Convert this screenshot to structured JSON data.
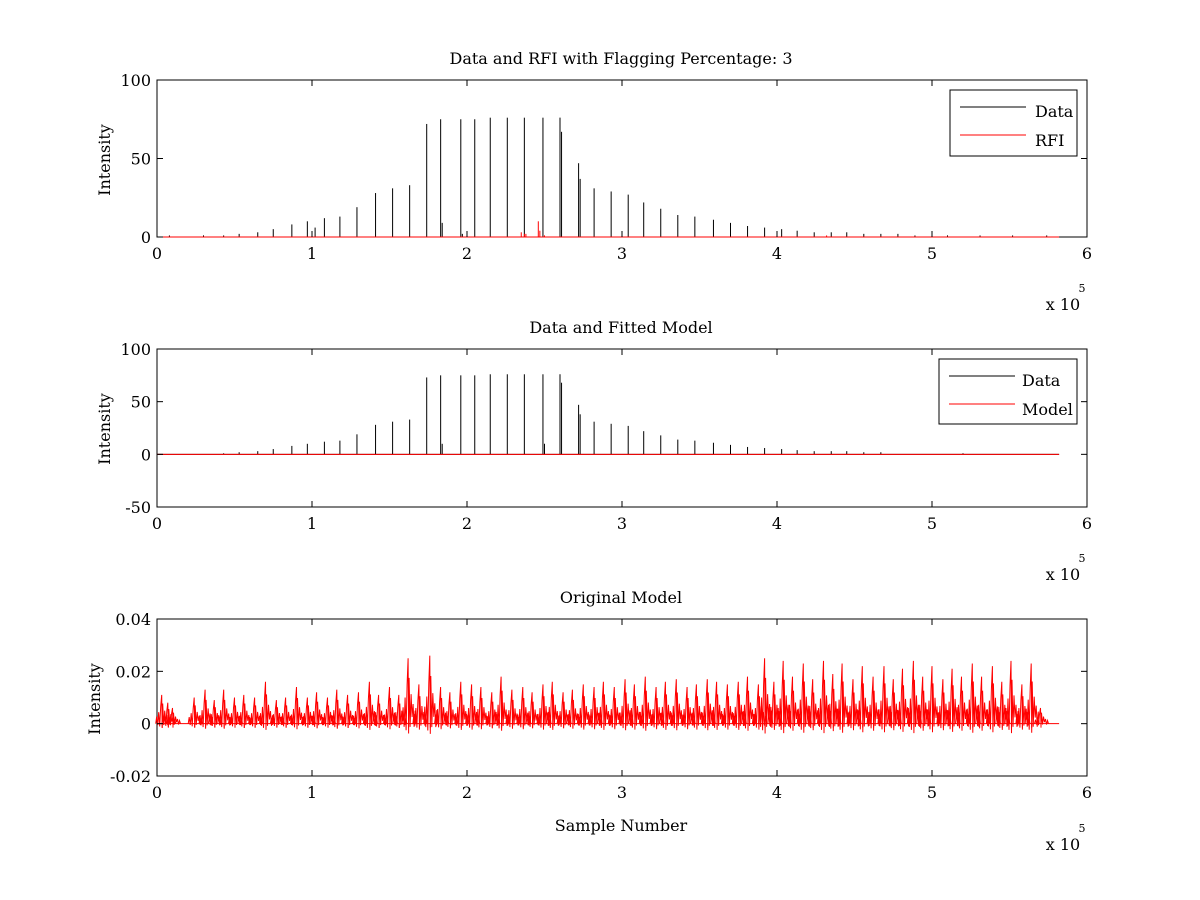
{
  "colors": {
    "data": "#000000",
    "rfi": "#ff0000",
    "model": "#ff0000",
    "axes": "#000000",
    "background": "#ffffff"
  },
  "chart_data": [
    {
      "type": "line",
      "title": "Data and RFI with Flagging Percentage: 3",
      "xlabel": "",
      "ylabel": "Intensity",
      "xlim": [
        0,
        6
      ],
      "ylim": [
        0,
        100
      ],
      "xticks": [
        "0",
        "1",
        "2",
        "3",
        "4",
        "5",
        "6"
      ],
      "yticks": [
        "0",
        "50",
        "100"
      ],
      "x_multiplier": {
        "base": "x 10",
        "exponent": "5"
      },
      "legend": {
        "position": "top-right",
        "entries": [
          "Data",
          "RFI"
        ]
      },
      "baseline_end": 5.82,
      "series": [
        {
          "name": "Data",
          "color": "#000000",
          "spikes": [
            [
              0.08,
              1
            ],
            [
              0.3,
              1
            ],
            [
              0.43,
              1
            ],
            [
              0.53,
              2
            ],
            [
              0.65,
              3
            ],
            [
              0.75,
              5
            ],
            [
              0.87,
              8
            ],
            [
              0.97,
              10
            ],
            [
              1.02,
              6
            ],
            [
              1.08,
              12
            ],
            [
              1.18,
              13
            ],
            [
              1.29,
              19
            ],
            [
              1.41,
              28
            ],
            [
              1.52,
              31
            ],
            [
              1.63,
              33
            ],
            [
              1.74,
              72
            ],
            [
              1.83,
              75
            ],
            [
              1.84,
              9
            ],
            [
              1.96,
              75
            ],
            [
              1.97,
              2
            ],
            [
              2.05,
              75
            ],
            [
              2.15,
              76
            ],
            [
              2.26,
              76
            ],
            [
              2.37,
              76
            ],
            [
              2.49,
              76
            ],
            [
              2.6,
              76
            ],
            [
              2.61,
              67
            ],
            [
              2.72,
              47
            ],
            [
              2.73,
              37
            ],
            [
              2.82,
              31
            ],
            [
              2.93,
              29
            ],
            [
              3.04,
              27
            ],
            [
              3.14,
              22
            ],
            [
              3.25,
              18
            ],
            [
              3.36,
              14
            ],
            [
              3.47,
              13
            ],
            [
              3.59,
              11
            ],
            [
              3.7,
              9
            ],
            [
              3.81,
              7
            ],
            [
              3.92,
              6
            ],
            [
              4.03,
              5
            ],
            [
              4.13,
              4
            ],
            [
              4.24,
              3
            ],
            [
              4.35,
              3
            ],
            [
              4.45,
              3
            ],
            [
              4.56,
              2
            ],
            [
              4.67,
              2
            ],
            [
              4.78,
              2
            ],
            [
              4.89,
              1
            ],
            [
              5.1,
              1
            ],
            [
              5.31,
              1
            ],
            [
              5.52,
              1
            ],
            [
              5.74,
              1
            ]
          ]
        },
        {
          "name": "RFI",
          "color": "#ff0000",
          "spikes": [
            [
              2.35,
              3
            ],
            [
              2.37,
              2
            ],
            [
              2.38,
              2
            ],
            [
              2.46,
              10
            ],
            [
              2.47,
              4
            ],
            [
              2.5,
              1
            ],
            [
              4.32,
              1
            ]
          ]
        }
      ]
    },
    {
      "type": "line",
      "title": "Data and Fitted Model",
      "xlabel": "",
      "ylabel": "Intensity",
      "xlim": [
        0,
        6
      ],
      "ylim": [
        -50,
        100
      ],
      "xticks": [
        "0",
        "1",
        "2",
        "3",
        "4",
        "5",
        "6"
      ],
      "yticks": [
        "-50",
        "0",
        "50",
        "100"
      ],
      "x_multiplier": {
        "base": "x 10",
        "exponent": "5"
      },
      "legend": {
        "position": "top-right",
        "entries": [
          "Data",
          "Model"
        ]
      },
      "baseline_end": 5.82,
      "series": [
        {
          "name": "Data",
          "color": "#000000",
          "spikes": [
            [
              0.43,
              1
            ],
            [
              0.53,
              2
            ],
            [
              0.65,
              3
            ],
            [
              0.75,
              5
            ],
            [
              0.87,
              8
            ],
            [
              0.97,
              10
            ],
            [
              1.08,
              12
            ],
            [
              1.18,
              13
            ],
            [
              1.29,
              19
            ],
            [
              1.41,
              28
            ],
            [
              1.52,
              31
            ],
            [
              1.63,
              33
            ],
            [
              1.74,
              73
            ],
            [
              1.83,
              75
            ],
            [
              1.84,
              10
            ],
            [
              1.96,
              75
            ],
            [
              2.05,
              75
            ],
            [
              2.15,
              76
            ],
            [
              2.26,
              76
            ],
            [
              2.37,
              76
            ],
            [
              2.49,
              76
            ],
            [
              2.5,
              10
            ],
            [
              2.6,
              76
            ],
            [
              2.61,
              68
            ],
            [
              2.72,
              47
            ],
            [
              2.73,
              38
            ],
            [
              2.82,
              31
            ],
            [
              2.93,
              29
            ],
            [
              3.04,
              27
            ],
            [
              3.14,
              22
            ],
            [
              3.25,
              18
            ],
            [
              3.36,
              14
            ],
            [
              3.47,
              13
            ],
            [
              3.59,
              11
            ],
            [
              3.7,
              9
            ],
            [
              3.81,
              7
            ],
            [
              3.92,
              6
            ],
            [
              4.03,
              5
            ],
            [
              4.13,
              4
            ],
            [
              4.24,
              3
            ],
            [
              4.35,
              3
            ],
            [
              4.45,
              3
            ],
            [
              4.56,
              2
            ],
            [
              4.67,
              2
            ],
            [
              5.2,
              1
            ]
          ]
        },
        {
          "name": "Model",
          "color": "#ff0000",
          "spikes": []
        }
      ]
    },
    {
      "type": "line",
      "title": "Original Model",
      "xlabel": "Sample Number",
      "ylabel": "Intensity",
      "xlim": [
        0,
        6
      ],
      "ylim": [
        -0.02,
        0.04
      ],
      "xticks": [
        "0",
        "1",
        "2",
        "3",
        "4",
        "5",
        "6"
      ],
      "yticks": [
        "-0.02",
        "0",
        "0.02",
        "0.04"
      ],
      "x_multiplier": {
        "base": "x 10",
        "exponent": "5"
      },
      "baseline_end": 5.82,
      "series": [
        {
          "name": "Model",
          "color": "#ff0000",
          "peaks": [
            [
              0.03,
              0.011
            ],
            [
              0.07,
              0.008
            ],
            [
              0.1,
              0.006
            ],
            [
              0.24,
              0.01
            ],
            [
              0.31,
              0.013
            ],
            [
              0.37,
              0.009
            ],
            [
              0.43,
              0.013
            ],
            [
              0.5,
              0.01
            ],
            [
              0.56,
              0.011
            ],
            [
              0.63,
              0.01
            ],
            [
              0.7,
              0.016
            ],
            [
              0.77,
              0.009
            ],
            [
              0.83,
              0.01
            ],
            [
              0.9,
              0.014
            ],
            [
              0.97,
              0.01
            ],
            [
              1.03,
              0.012
            ],
            [
              1.1,
              0.01
            ],
            [
              1.16,
              0.013
            ],
            [
              1.23,
              0.011
            ],
            [
              1.3,
              0.012
            ],
            [
              1.37,
              0.016
            ],
            [
              1.43,
              0.011
            ],
            [
              1.5,
              0.014
            ],
            [
              1.56,
              0.011
            ],
            [
              1.62,
              0.025
            ],
            [
              1.69,
              0.015
            ],
            [
              1.76,
              0.026
            ],
            [
              1.83,
              0.014
            ],
            [
              1.89,
              0.012
            ],
            [
              1.96,
              0.016
            ],
            [
              2.03,
              0.015
            ],
            [
              2.09,
              0.014
            ],
            [
              2.16,
              0.012
            ],
            [
              2.22,
              0.018
            ],
            [
              2.29,
              0.013
            ],
            [
              2.36,
              0.014
            ],
            [
              2.42,
              0.012
            ],
            [
              2.49,
              0.015
            ],
            [
              2.55,
              0.016
            ],
            [
              2.62,
              0.012
            ],
            [
              2.68,
              0.013
            ],
            [
              2.75,
              0.015
            ],
            [
              2.82,
              0.014
            ],
            [
              2.88,
              0.016
            ],
            [
              2.95,
              0.014
            ],
            [
              3.02,
              0.017
            ],
            [
              3.08,
              0.015
            ],
            [
              3.15,
              0.018
            ],
            [
              3.22,
              0.014
            ],
            [
              3.28,
              0.016
            ],
            [
              3.35,
              0.017
            ],
            [
              3.42,
              0.014
            ],
            [
              3.48,
              0.015
            ],
            [
              3.55,
              0.017
            ],
            [
              3.61,
              0.016
            ],
            [
              3.68,
              0.015
            ],
            [
              3.75,
              0.016
            ],
            [
              3.81,
              0.018
            ],
            [
              3.88,
              0.015
            ],
            [
              3.92,
              0.025
            ],
            [
              3.98,
              0.016
            ],
            [
              4.04,
              0.024
            ],
            [
              4.1,
              0.018
            ],
            [
              4.17,
              0.023
            ],
            [
              4.23,
              0.017
            ],
            [
              4.3,
              0.024
            ],
            [
              4.36,
              0.019
            ],
            [
              4.42,
              0.023
            ],
            [
              4.49,
              0.017
            ],
            [
              4.55,
              0.022
            ],
            [
              4.62,
              0.018
            ],
            [
              4.69,
              0.022
            ],
            [
              4.75,
              0.017
            ],
            [
              4.81,
              0.021
            ],
            [
              4.88,
              0.024
            ],
            [
              4.94,
              0.018
            ],
            [
              5.0,
              0.022
            ],
            [
              5.07,
              0.017
            ],
            [
              5.13,
              0.021
            ],
            [
              5.19,
              0.018
            ],
            [
              5.26,
              0.023
            ],
            [
              5.32,
              0.018
            ],
            [
              5.39,
              0.022
            ],
            [
              5.45,
              0.016
            ],
            [
              5.51,
              0.024
            ],
            [
              5.58,
              0.015
            ],
            [
              5.64,
              0.023
            ],
            [
              5.7,
              0.006
            ]
          ]
        }
      ]
    }
  ]
}
